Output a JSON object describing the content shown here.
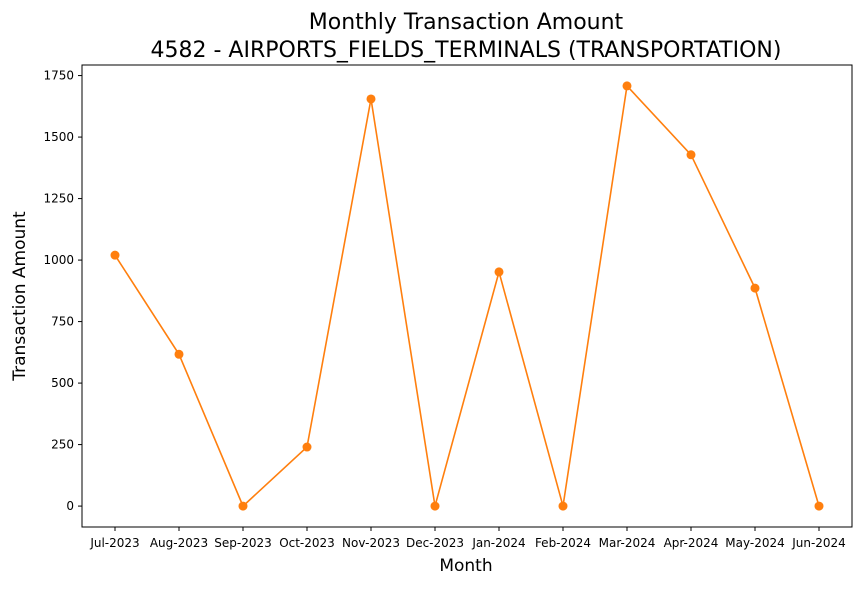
{
  "chart_data": {
    "type": "line",
    "title_line1": "Monthly Transaction Amount",
    "title_line2": "4582 - AIRPORTS_FIELDS_TERMINALS (TRANSPORTATION)",
    "xlabel": "Month",
    "ylabel": "Transaction Amount",
    "categories": [
      "Jul-2023",
      "Aug-2023",
      "Sep-2023",
      "Oct-2023",
      "Nov-2023",
      "Dec-2023",
      "Jan-2024",
      "Feb-2024",
      "Mar-2024",
      "Apr-2024",
      "May-2024",
      "Jun-2024"
    ],
    "values": [
      1020,
      617,
      0,
      240,
      1655,
      0,
      952,
      0,
      1708,
      1428,
      886,
      0
    ],
    "yticks": [
      0,
      250,
      500,
      750,
      1000,
      1250,
      1500,
      1750
    ],
    "ylim": [
      -85,
      1793
    ],
    "grid": false,
    "line_color": "#ff7f0e",
    "marker": "circle"
  }
}
